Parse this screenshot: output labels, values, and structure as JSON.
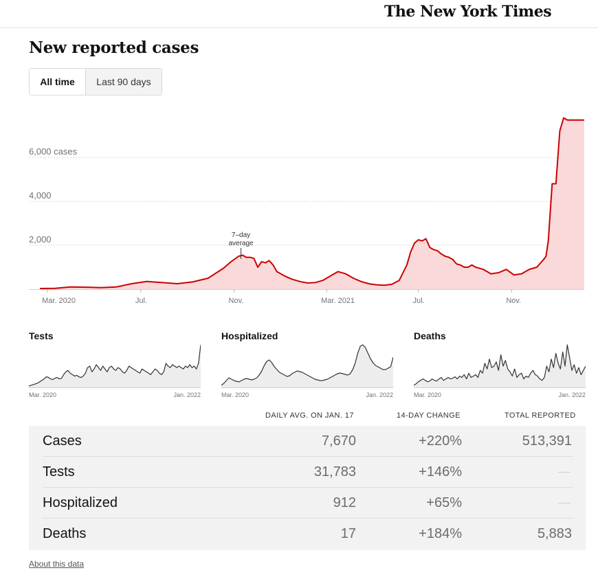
{
  "masthead": {
    "logo_text": "The New York Times"
  },
  "page": {
    "title": "New reported cases"
  },
  "toggle": {
    "all_time": "All time",
    "last_90": "Last 90 days"
  },
  "chart_data": [
    {
      "name": "cases",
      "type": "area",
      "title": "New reported cases",
      "series_label": "7-day average",
      "annotation": [
        "7–day",
        "average"
      ],
      "annotation_x": 263,
      "color": "#cc0000",
      "fill": "#f9d9da",
      "ylim": [
        0,
        7850
      ],
      "yticks": [
        2000,
        4000,
        6000
      ],
      "ytick_labels": [
        "2,000",
        "4,000",
        "6,000 cases"
      ],
      "xtick_labels": [
        "Mar. 2020",
        "Jul.",
        "Nov.",
        "Mar. 2021",
        "Jul.",
        "Nov."
      ],
      "xtick_days": [
        10,
        132,
        254,
        375,
        495,
        617
      ],
      "x": [
        0,
        20,
        40,
        60,
        80,
        100,
        120,
        140,
        160,
        180,
        200,
        220,
        240,
        250,
        260,
        265,
        270,
        275,
        280,
        285,
        290,
        295,
        300,
        305,
        310,
        320,
        330,
        340,
        350,
        360,
        370,
        380,
        390,
        400,
        410,
        420,
        430,
        440,
        450,
        460,
        470,
        480,
        485,
        490,
        495,
        500,
        505,
        510,
        515,
        520,
        525,
        530,
        535,
        540,
        545,
        550,
        555,
        560,
        565,
        570,
        575,
        580,
        590,
        600,
        610,
        620,
        630,
        640,
        650,
        660,
        662,
        665,
        670,
        675,
        680,
        685,
        690,
        693,
        695,
        697,
        699,
        701,
        703,
        705,
        707,
        710,
        712
      ],
      "y": [
        30,
        40,
        100,
        90,
        70,
        100,
        250,
        350,
        300,
        250,
        330,
        500,
        950,
        1250,
        1500,
        1550,
        1450,
        1450,
        1400,
        1000,
        1250,
        1200,
        1300,
        1100,
        800,
        600,
        450,
        350,
        280,
        300,
        400,
        600,
        800,
        700,
        500,
        350,
        250,
        200,
        180,
        220,
        400,
        1100,
        1700,
        2100,
        2250,
        2200,
        2300,
        1900,
        1800,
        1750,
        1600,
        1500,
        1450,
        1350,
        1150,
        1100,
        1000,
        1000,
        1100,
        1000,
        950,
        900,
        700,
        750,
        900,
        650,
        700,
        900,
        1000,
        1400,
        1500,
        2200,
        4800,
        4800,
        7200,
        7800,
        7700,
        7700,
        7700,
        7700,
        7700,
        7700,
        7700,
        7700,
        7700,
        7700,
        7700
      ]
    },
    {
      "name": "tests",
      "type": "area",
      "title": "Tests",
      "xtick_labels": [
        "Mar. 2020",
        "Jan. 2022"
      ],
      "values": [
        2,
        3,
        4,
        5,
        6,
        8,
        10,
        12,
        15,
        14,
        12,
        11,
        13,
        14,
        12,
        13,
        18,
        22,
        24,
        20,
        18,
        16,
        17,
        15,
        14,
        16,
        20,
        28,
        30,
        22,
        26,
        32,
        28,
        24,
        30,
        26,
        22,
        28,
        30,
        26,
        24,
        28,
        26,
        22,
        20,
        24,
        30,
        28,
        26,
        24,
        22,
        20,
        26,
        24,
        22,
        20,
        18,
        22,
        26,
        24,
        20,
        18,
        22,
        34,
        30,
        28,
        32,
        30,
        28,
        30,
        28,
        26,
        30,
        28,
        32,
        28,
        30,
        26,
        34,
        60
      ]
    },
    {
      "name": "hospitalized",
      "type": "area",
      "title": "Hospitalized",
      "xtick_labels": [
        "Mar. 2020",
        "Jan. 2022"
      ],
      "values": [
        3,
        6,
        10,
        14,
        12,
        10,
        9,
        8,
        10,
        12,
        13,
        12,
        11,
        12,
        14,
        18,
        24,
        32,
        38,
        40,
        36,
        30,
        26,
        22,
        20,
        18,
        16,
        17,
        20,
        22,
        24,
        23,
        22,
        20,
        18,
        16,
        14,
        12,
        11,
        10,
        10,
        11,
        12,
        14,
        16,
        18,
        20,
        21,
        20,
        19,
        18,
        20,
        26,
        36,
        50,
        60,
        62,
        58,
        50,
        42,
        36,
        32,
        30,
        28,
        26,
        26,
        28,
        30,
        44
      ]
    },
    {
      "name": "deaths",
      "type": "area",
      "title": "Deaths",
      "xtick_labels": [
        "Mar. 2020",
        "Jan. 2022"
      ],
      "values": [
        3,
        5,
        8,
        10,
        12,
        10,
        8,
        9,
        12,
        10,
        9,
        12,
        14,
        10,
        12,
        14,
        12,
        13,
        15,
        12,
        16,
        14,
        18,
        12,
        20,
        14,
        16,
        18,
        14,
        24,
        20,
        34,
        26,
        40,
        28,
        30,
        36,
        24,
        46,
        30,
        38,
        26,
        22,
        16,
        26,
        14,
        18,
        20,
        12,
        16,
        14,
        20,
        24,
        18,
        16,
        12,
        10,
        14,
        30,
        22,
        40,
        28,
        48,
        34,
        26,
        50,
        30,
        60,
        42,
        24,
        32,
        20,
        28,
        18,
        24,
        30
      ]
    }
  ],
  "table": {
    "headers": {
      "daily": "DAILY AVG. ON JAN. 17",
      "change": "14-DAY CHANGE",
      "total": "TOTAL REPORTED"
    },
    "rows": [
      {
        "label": "Cases",
        "daily": "7,670",
        "change": "+220%",
        "total": "513,391"
      },
      {
        "label": "Tests",
        "daily": "31,783",
        "change": "+146%",
        "total": ""
      },
      {
        "label": "Hospitalized",
        "daily": "912",
        "change": "+65%",
        "total": ""
      },
      {
        "label": "Deaths",
        "daily": "17",
        "change": "+184%",
        "total": "5,883"
      }
    ]
  },
  "footer": {
    "about_link": "About this data"
  }
}
